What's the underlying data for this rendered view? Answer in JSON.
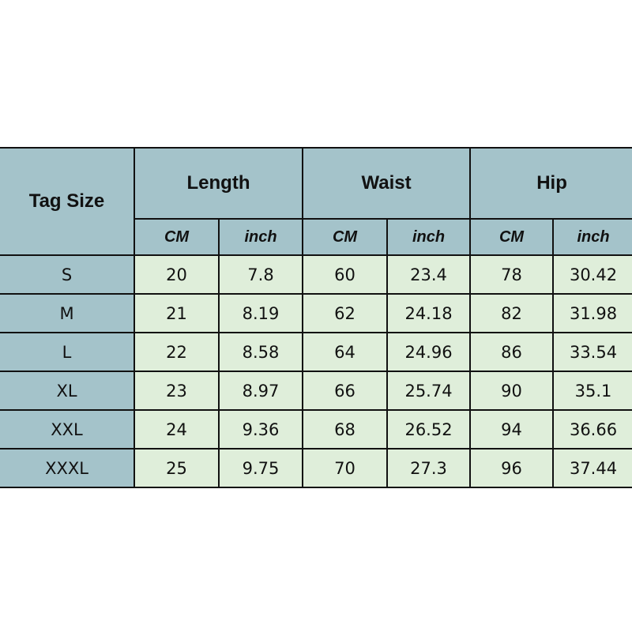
{
  "table": {
    "tag_size_header": "Tag Size",
    "groups": [
      "Length",
      "Waist",
      "Hip"
    ],
    "units": [
      "CM",
      "inch"
    ],
    "rows": [
      [
        "S",
        "20",
        "7.8",
        "60",
        "23.4",
        "78",
        "30.42"
      ],
      [
        "M",
        "21",
        "8.19",
        "62",
        "24.18",
        "82",
        "31.98"
      ],
      [
        "L",
        "22",
        "8.58",
        "64",
        "24.96",
        "86",
        "33.54"
      ],
      [
        "XL",
        "23",
        "8.97",
        "66",
        "25.74",
        "90",
        "35.1"
      ],
      [
        "XXL",
        "24",
        "9.36",
        "68",
        "26.52",
        "94",
        "36.66"
      ],
      [
        "XXXL",
        "25",
        "9.75",
        "70",
        "27.3",
        "96",
        "37.44"
      ]
    ],
    "colors": {
      "header": "#a4c3ca",
      "cell": "#dfeeda",
      "border": "#111111"
    }
  }
}
